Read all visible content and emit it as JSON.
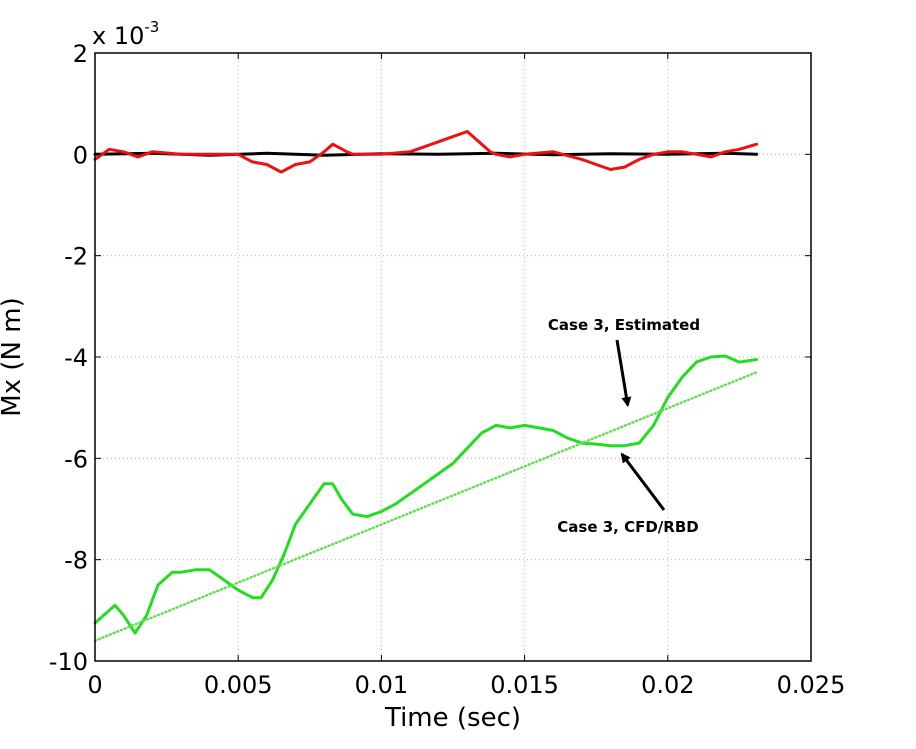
{
  "chart_data": {
    "type": "line",
    "title": "",
    "xlabel": "Time (sec)",
    "ylabel": "Mx (N m)",
    "y_scale_label": "x 10",
    "y_scale_exponent": "-3",
    "xlim": [
      0,
      0.025
    ],
    "ylim": [
      -10,
      2
    ],
    "xticks": [
      0,
      0.005,
      0.01,
      0.015,
      0.02,
      0.025
    ],
    "xtick_labels": [
      "0",
      "0.005",
      "0.01",
      "0.015",
      "0.02",
      "0.025"
    ],
    "yticks": [
      -10,
      -8,
      -6,
      -4,
      -2,
      0,
      2
    ],
    "ytick_labels": [
      "-10",
      "-8",
      "-6",
      "-4",
      "-2",
      "0",
      "2"
    ],
    "grid": true,
    "series": [
      {
        "color": "#000000",
        "style": "solid",
        "x": [
          0,
          0.002,
          0.004,
          0.006,
          0.008,
          0.01,
          0.012,
          0.014,
          0.016,
          0.018,
          0.02,
          0.022,
          0.0231
        ],
        "y": [
          0,
          0.02,
          -0.02,
          0.02,
          -0.02,
          0.01,
          0,
          0.02,
          -0.01,
          0.01,
          0,
          0.02,
          0
        ]
      },
      {
        "color": "#ee1111",
        "style": "solid",
        "x": [
          0,
          0.0005,
          0.001,
          0.0015,
          0.002,
          0.003,
          0.004,
          0.005,
          0.0055,
          0.006,
          0.0065,
          0.007,
          0.0075,
          0.008,
          0.0083,
          0.0088,
          0.009,
          0.0095,
          0.01,
          0.011,
          0.012,
          0.0125,
          0.013,
          0.0133,
          0.0138,
          0.014,
          0.0145,
          0.015,
          0.016,
          0.017,
          0.0175,
          0.018,
          0.0185,
          0.019,
          0.0195,
          0.02,
          0.0205,
          0.021,
          0.0215,
          0.022,
          0.0225,
          0.0231
        ],
        "y": [
          -0.1,
          0.1,
          0.05,
          -0.05,
          0.05,
          0,
          0,
          0,
          -0.15,
          -0.2,
          -0.35,
          -0.2,
          -0.15,
          0.05,
          0.2,
          0.05,
          0,
          0,
          0,
          0.05,
          0.25,
          0.35,
          0.45,
          0.3,
          0.05,
          0,
          -0.05,
          0,
          0.05,
          -0.1,
          -0.2,
          -0.3,
          -0.25,
          -0.1,
          0,
          0.05,
          0.05,
          0,
          -0.05,
          0.05,
          0.1,
          0.2
        ]
      },
      {
        "color": "#22dd22",
        "style": "solid",
        "x": [
          0,
          0.0003,
          0.0007,
          0.001,
          0.0014,
          0.0018,
          0.0022,
          0.0027,
          0.003,
          0.0035,
          0.004,
          0.0045,
          0.005,
          0.0055,
          0.0058,
          0.0062,
          0.0066,
          0.007,
          0.0075,
          0.008,
          0.0083,
          0.0086,
          0.009,
          0.0095,
          0.01,
          0.0105,
          0.011,
          0.0115,
          0.012,
          0.0125,
          0.013,
          0.0135,
          0.014,
          0.0145,
          0.015,
          0.0155,
          0.016,
          0.0165,
          0.017,
          0.0175,
          0.018,
          0.0185,
          0.019,
          0.0195,
          0.02,
          0.0205,
          0.021,
          0.0215,
          0.022,
          0.0225,
          0.0231
        ],
        "y": [
          -9.25,
          -9.1,
          -8.9,
          -9.1,
          -9.45,
          -9.1,
          -8.5,
          -8.25,
          -8.25,
          -8.2,
          -8.2,
          -8.4,
          -8.6,
          -8.75,
          -8.75,
          -8.4,
          -7.9,
          -7.3,
          -6.9,
          -6.5,
          -6.5,
          -6.8,
          -7.1,
          -7.15,
          -7.05,
          -6.9,
          -6.7,
          -6.5,
          -6.3,
          -6.1,
          -5.8,
          -5.5,
          -5.35,
          -5.4,
          -5.35,
          -5.4,
          -5.45,
          -5.6,
          -5.7,
          -5.72,
          -5.75,
          -5.75,
          -5.7,
          -5.35,
          -4.8,
          -4.4,
          -4.1,
          -4.0,
          -3.98,
          -4.1,
          -4.05
        ]
      },
      {
        "color": "#66dd55",
        "style": "dotted",
        "x": [
          0,
          0.0231
        ],
        "y": [
          -9.6,
          -4.3
        ]
      }
    ],
    "annotations": [
      {
        "text": "Case 3, Estimated",
        "x": 0.0186,
        "y": -4.95
      },
      {
        "text": "Case 3, CFD/RBD",
        "x": 0.0184,
        "y": -5.8
      }
    ]
  }
}
